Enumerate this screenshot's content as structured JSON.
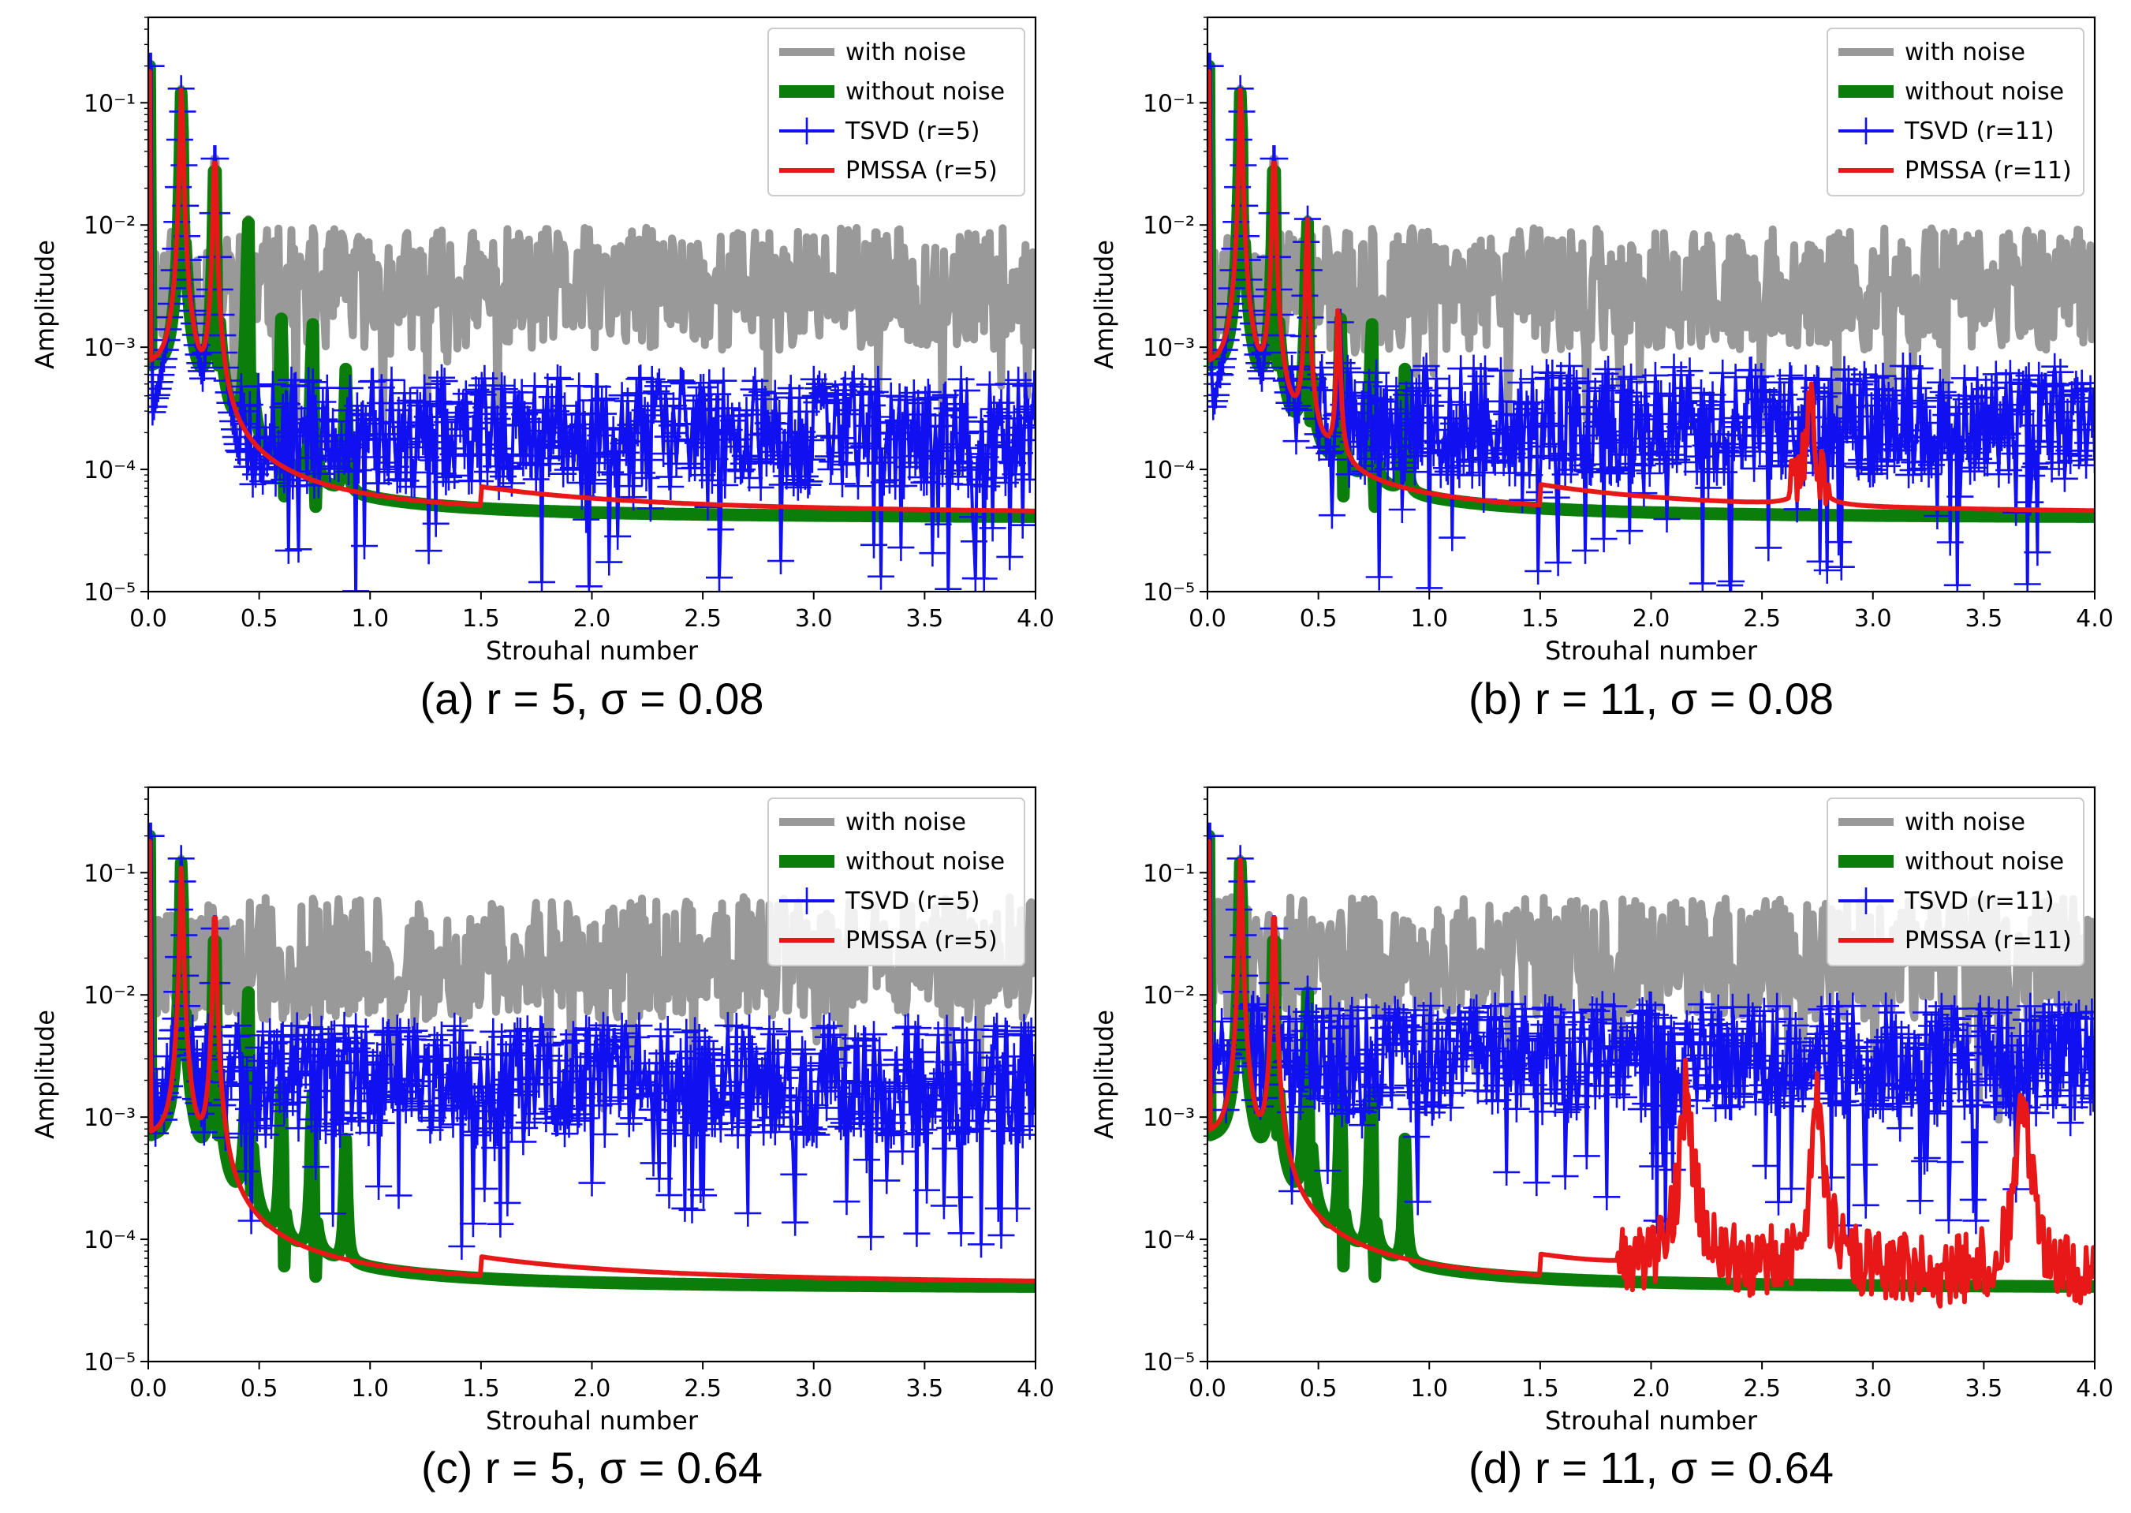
{
  "figure": {
    "colors": {
      "with_noise": "#999999",
      "without_noise": "#0a7d0a",
      "tsvd": "#1010f0",
      "pmssa": "#e81818"
    }
  },
  "chart_data": [
    {
      "id": "a",
      "type": "line",
      "caption": "(a) r = 5, σ = 0.08",
      "xlabel": "Strouhal number",
      "ylabel": "Amplitude",
      "xlim": [
        0.0,
        4.0
      ],
      "ylim": [
        1e-05,
        0.5
      ],
      "yscale": "log",
      "xticks": [
        "0.0",
        "0.5",
        "1.0",
        "1.5",
        "2.0",
        "2.5",
        "3.0",
        "3.5",
        "4.0"
      ],
      "yticks": [
        "10⁻⁵",
        "10⁻⁴",
        "10⁻³",
        "10⁻²",
        "10⁻¹"
      ],
      "legend": [
        "with noise",
        "without noise",
        "TSVD (r=5)",
        "PMSSA (r=5)"
      ],
      "noise_level": 0.003,
      "tsvd_level": 0.0002,
      "peaks": [
        {
          "x": 0.15,
          "y": 0.14
        },
        {
          "x": 0.3,
          "y": 0.045
        },
        {
          "x": 0.45,
          "y": 0.012
        },
        {
          "x": 0.6,
          "y": 0.0016
        },
        {
          "x": 0.74,
          "y": 0.0018
        },
        {
          "x": 0.89,
          "y": 0.0006
        }
      ],
      "pmssa_peaks": [
        {
          "x": 0.15,
          "y": 0.14
        },
        {
          "x": 0.3,
          "y": 0.045
        }
      ],
      "pmssa_noise_segments": [],
      "pmssa_floor": 4e-05
    },
    {
      "id": "b",
      "type": "line",
      "caption": "(b) r = 11, σ = 0.08",
      "xlabel": "Strouhal number",
      "ylabel": "Amplitude",
      "xlim": [
        0.0,
        4.0
      ],
      "ylim": [
        1e-05,
        0.5
      ],
      "yscale": "log",
      "xticks": [
        "0.0",
        "0.5",
        "1.0",
        "1.5",
        "2.0",
        "2.5",
        "3.0",
        "3.5",
        "4.0"
      ],
      "yticks": [
        "10⁻⁵",
        "10⁻⁴",
        "10⁻³",
        "10⁻²",
        "10⁻¹"
      ],
      "legend": [
        "with noise",
        "without noise",
        "TSVD (r=11)",
        "PMSSA (r=11)"
      ],
      "noise_level": 0.003,
      "tsvd_level": 0.00025,
      "peaks": [
        {
          "x": 0.15,
          "y": 0.14
        },
        {
          "x": 0.3,
          "y": 0.045
        },
        {
          "x": 0.45,
          "y": 0.012
        },
        {
          "x": 0.6,
          "y": 0.0016
        },
        {
          "x": 0.74,
          "y": 0.0018
        },
        {
          "x": 0.89,
          "y": 0.0006
        }
      ],
      "pmssa_peaks": [
        {
          "x": 0.15,
          "y": 0.14
        },
        {
          "x": 0.3,
          "y": 0.045
        },
        {
          "x": 0.45,
          "y": 0.012
        },
        {
          "x": 0.59,
          "y": 0.0025
        },
        {
          "x": 2.72,
          "y": 0.0003
        }
      ],
      "pmssa_noise_segments": [
        [
          2.62,
          2.8
        ]
      ],
      "pmssa_floor": 4e-05
    },
    {
      "id": "c",
      "type": "line",
      "caption": "(c) r = 5, σ = 0.64",
      "xlabel": "Strouhal number",
      "ylabel": "Amplitude",
      "xlim": [
        0.0,
        4.0
      ],
      "ylim": [
        1e-05,
        0.5
      ],
      "yscale": "log",
      "xticks": [
        "0.0",
        "0.5",
        "1.0",
        "1.5",
        "2.0",
        "2.5",
        "3.0",
        "3.5",
        "4.0"
      ],
      "yticks": [
        "10⁻⁵",
        "10⁻⁴",
        "10⁻³",
        "10⁻²",
        "10⁻¹"
      ],
      "legend": [
        "with noise",
        "without noise",
        "TSVD (r=5)",
        "PMSSA (r=5)"
      ],
      "noise_level": 0.02,
      "tsvd_level": 0.002,
      "peaks": [
        {
          "x": 0.15,
          "y": 0.14
        },
        {
          "x": 0.3,
          "y": 0.045
        },
        {
          "x": 0.45,
          "y": 0.012
        },
        {
          "x": 0.6,
          "y": 0.0016
        },
        {
          "x": 0.74,
          "y": 0.0018
        },
        {
          "x": 0.89,
          "y": 0.0006
        }
      ],
      "pmssa_peaks": [
        {
          "x": 0.15,
          "y": 0.12
        },
        {
          "x": 0.3,
          "y": 0.06
        }
      ],
      "pmssa_noise_segments": [],
      "pmssa_floor": 4e-05
    },
    {
      "id": "d",
      "type": "line",
      "caption": "(d) r = 11, σ = 0.64",
      "xlabel": "Strouhal number",
      "ylabel": "Amplitude",
      "xlim": [
        0.0,
        4.0
      ],
      "ylim": [
        1e-05,
        0.5
      ],
      "yscale": "log",
      "xticks": [
        "0.0",
        "0.5",
        "1.0",
        "1.5",
        "2.0",
        "2.5",
        "3.0",
        "3.5",
        "4.0"
      ],
      "yticks": [
        "10⁻⁵",
        "10⁻⁴",
        "10⁻³",
        "10⁻²",
        "10⁻¹"
      ],
      "legend": [
        "with noise",
        "without noise",
        "TSVD (r=11)",
        "PMSSA (r=11)"
      ],
      "noise_level": 0.02,
      "tsvd_level": 0.003,
      "peaks": [
        {
          "x": 0.15,
          "y": 0.14
        },
        {
          "x": 0.3,
          "y": 0.045
        },
        {
          "x": 0.45,
          "y": 0.012
        },
        {
          "x": 0.6,
          "y": 0.0016
        },
        {
          "x": 0.74,
          "y": 0.0018
        },
        {
          "x": 0.89,
          "y": 0.0006
        }
      ],
      "pmssa_peaks": [
        {
          "x": 0.15,
          "y": 0.14
        },
        {
          "x": 0.3,
          "y": 0.06
        },
        {
          "x": 2.16,
          "y": 0.0018
        },
        {
          "x": 2.75,
          "y": 0.0015
        },
        {
          "x": 3.68,
          "y": 0.0016
        }
      ],
      "pmssa_noise_segments": [
        [
          1.85,
          4.0
        ]
      ],
      "pmssa_floor": 4e-05
    }
  ]
}
